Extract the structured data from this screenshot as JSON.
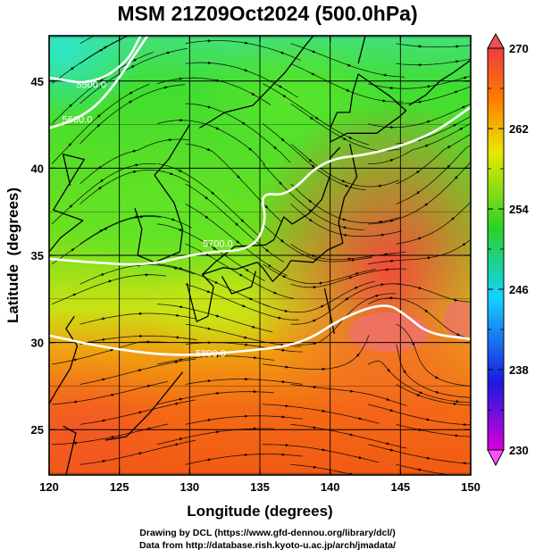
{
  "title": "MSM 21Z09Oct2024 (500.0hPa)",
  "chart_data": {
    "type": "heatmap",
    "title": "MSM 21Z09Oct2024 (500.0hPa)",
    "xlabel": "Longitude (degrees)",
    "ylabel": "Latitude  (degrees)",
    "xlim": [
      120,
      150
    ],
    "ylim": [
      22.4,
      47.6
    ],
    "xticks": [
      120,
      125,
      130,
      135,
      140,
      145,
      150
    ],
    "yticks": [
      25,
      30,
      35,
      40,
      45
    ],
    "gridlines": [
      120,
      125,
      130,
      135,
      140,
      145,
      150
    ],
    "grid": true,
    "colorbar": {
      "min": 230,
      "max": 270,
      "ticks": [
        230,
        238,
        246,
        254,
        262,
        270
      ],
      "placement": "right",
      "colors": [
        "#d800d8",
        "#1a1ae0",
        "#14d2ff",
        "#28d228",
        "#e8e800",
        "#ff7800",
        "#f03c3c"
      ]
    },
    "contours": [
      {
        "value": 5500,
        "label": "5500.0",
        "points": [
          [
            120,
            45.2
          ],
          [
            123,
            44.8
          ],
          [
            125.5,
            46
          ],
          [
            126.5,
            47.6
          ]
        ]
      },
      {
        "value": 5600,
        "label": "5600.0",
        "points": [
          [
            120,
            42.3
          ],
          [
            122,
            42.8
          ],
          [
            124,
            44
          ],
          [
            127,
            47.6
          ]
        ]
      },
      {
        "value": 5700,
        "label": "5700.0",
        "points": [
          [
            120,
            34.8
          ],
          [
            123,
            34.6
          ],
          [
            127,
            34.4
          ],
          [
            131,
            35.2
          ],
          [
            134.5,
            35.3
          ],
          [
            135.5,
            37
          ],
          [
            135,
            38.6
          ],
          [
            137,
            38.4
          ],
          [
            139.5,
            40.5
          ],
          [
            143,
            40.8
          ],
          [
            147,
            41.8
          ],
          [
            150,
            43.5
          ]
        ]
      },
      {
        "value": 5800,
        "label": "5800.0",
        "points": [
          [
            120,
            30.4
          ],
          [
            124,
            29.7
          ],
          [
            129,
            29.2
          ],
          [
            134,
            29.5
          ],
          [
            138,
            29.9
          ],
          [
            141,
            31.5
          ],
          [
            144,
            32.3
          ],
          [
            145.5,
            31.5
          ],
          [
            147,
            30.5
          ],
          [
            150,
            30.2
          ]
        ]
      }
    ],
    "color_field_samples": [
      {
        "lon": 121,
        "lat": 47,
        "value": 248
      },
      {
        "lon": 130,
        "lat": 42,
        "value": 256
      },
      {
        "lon": 136,
        "lat": 38,
        "value": 258
      },
      {
        "lon": 145,
        "lat": 36,
        "value": 266
      },
      {
        "lon": 142,
        "lat": 30,
        "value": 268
      },
      {
        "lon": 125,
        "lat": 25,
        "value": 266
      }
    ]
  },
  "credits": [
    "Drawing by DCL (https://www.gfd-dennou.org/library/dcl/)",
    "Data from http://database.rish.kyoto-u.ac.jp/arch/jmadata/"
  ]
}
